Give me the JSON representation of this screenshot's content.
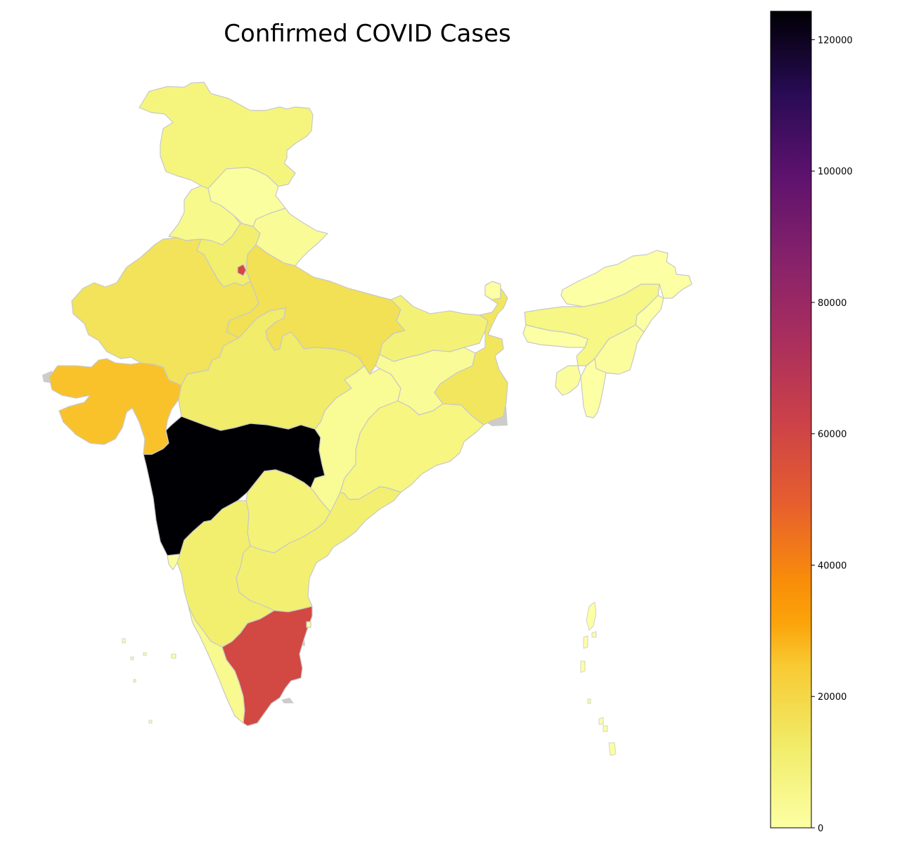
{
  "title": "Confirmed COVID Cases",
  "colormap": "inferno_r",
  "border_color": "#c8c8c8",
  "colorbar": {
    "min": 0,
    "max": 124331,
    "ticks": [
      {
        "value": 0,
        "label": "0"
      },
      {
        "value": 20000,
        "label": "20000"
      },
      {
        "value": 40000,
        "label": "40000"
      },
      {
        "value": 60000,
        "label": "60000"
      },
      {
        "value": 80000,
        "label": "80000"
      },
      {
        "value": 100000,
        "label": "100000"
      },
      {
        "value": 120000,
        "label": "120000"
      }
    ]
  },
  "regions": [
    {
      "name": "Jammu and Kashmir",
      "value": 6000
    },
    {
      "name": "Himachal Pradesh",
      "value": 800
    },
    {
      "name": "Punjab",
      "value": 4000
    },
    {
      "name": "Uttarakhand",
      "value": 2300
    },
    {
      "name": "Haryana",
      "value": 11000
    },
    {
      "name": "Delhi",
      "value": 59000
    },
    {
      "name": "Rajasthan",
      "value": 15500
    },
    {
      "name": "Uttar Pradesh",
      "value": 16500
    },
    {
      "name": "Bihar",
      "value": 8500
    },
    {
      "name": "Gujarat",
      "value": 26000
    },
    {
      "name": "Madhya Pradesh",
      "value": 12500
    },
    {
      "name": "Maharashtra",
      "value": 124331
    },
    {
      "name": "Chhattisgarh",
      "value": 2500
    },
    {
      "name": "Jharkhand",
      "value": 2300
    },
    {
      "name": "West Bengal",
      "value": 14500
    },
    {
      "name": "Odisha",
      "value": 5500
    },
    {
      "name": "Telangana",
      "value": 8000
    },
    {
      "name": "Andhra Pradesh",
      "value": 9800
    },
    {
      "name": "Karnataka",
      "value": 10500
    },
    {
      "name": "Goa",
      "value": 900
    },
    {
      "name": "Kerala",
      "value": 3500
    },
    {
      "name": "Tamil Nadu",
      "value": 59000
    },
    {
      "name": "Sikkim",
      "value": 100
    },
    {
      "name": "Assam",
      "value": 5000
    },
    {
      "name": "Arunachal Pradesh",
      "value": 160
    },
    {
      "name": "Nagaland",
      "value": 220
    },
    {
      "name": "Manipur",
      "value": 1100
    },
    {
      "name": "Mizoram",
      "value": 150
    },
    {
      "name": "Tripura",
      "value": 1300
    },
    {
      "name": "Meghalaya",
      "value": 50
    },
    {
      "name": "Puducherry",
      "value": 500
    },
    {
      "name": "Andaman and Nicobar Islands",
      "value": 90
    },
    {
      "name": "Lakshadweep",
      "value": 0
    }
  ]
}
